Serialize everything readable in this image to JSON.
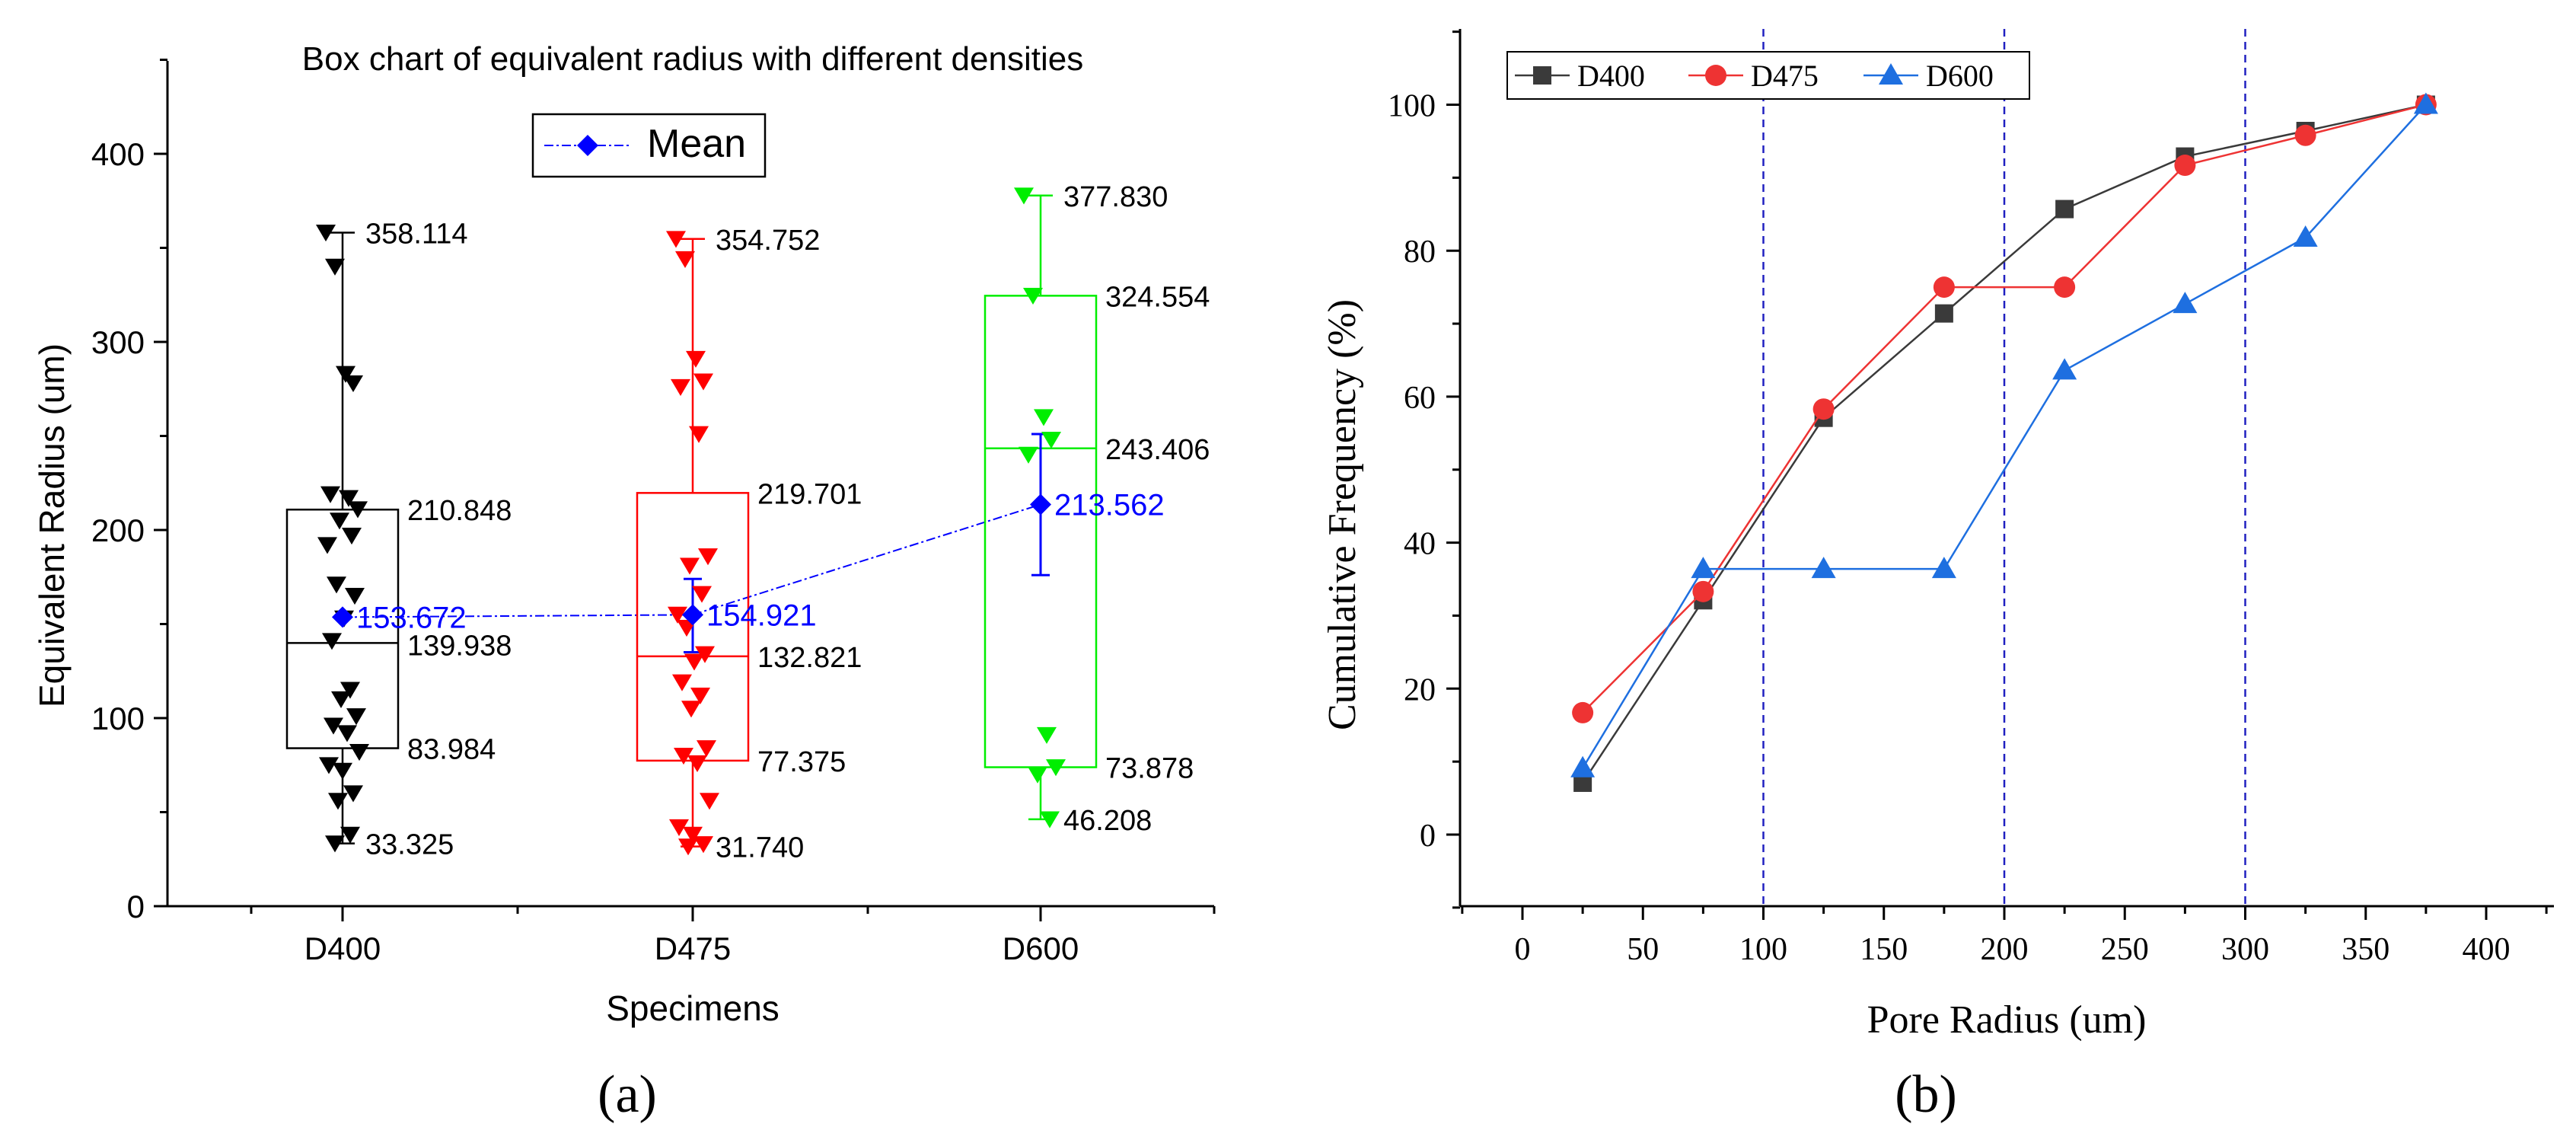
{
  "chart_data": [
    {
      "type": "box",
      "panel_label": "(a)",
      "title": "Box chart of equivalent radius with different densities",
      "xlabel": "Specimens",
      "ylabel": "Equivalent Radius (um)",
      "ylim": [
        0,
        450
      ],
      "yticks": [
        0,
        100,
        200,
        300,
        400
      ],
      "legend": {
        "label": "Mean",
        "placement": "top-center"
      },
      "categories": [
        "D400",
        "D475",
        "D600"
      ],
      "boxes": [
        {
          "name": "D400",
          "color": "#000000",
          "min": 33.325,
          "q1": 83.984,
          "median": 139.938,
          "q3": 210.848,
          "max": 358.114,
          "mean": 153.672,
          "labels": {
            "max": "358.114",
            "q3": "210.848",
            "median": "139.938",
            "q1": "83.984",
            "min": "33.325",
            "mean": "153.672"
          },
          "points": [
            358.114,
            340,
            283,
            278,
            219,
            217,
            211,
            205,
            197,
            192,
            171,
            165,
            153,
            141,
            115,
            110,
            101,
            96,
            92,
            82,
            75,
            72,
            60,
            56,
            38,
            33.325
          ]
        },
        {
          "name": "D475",
          "color": "#ff0000",
          "min": 31.74,
          "q1": 77.375,
          "median": 132.821,
          "q3": 219.701,
          "max": 354.752,
          "mean": 154.921,
          "err_low": 135,
          "err_high": 174,
          "labels": {
            "max": "354.752",
            "q3": "219.701",
            "median": "132.821",
            "q1": "77.375",
            "min": "31.740",
            "mean": "154.921"
          },
          "points": [
            354.752,
            344,
            291,
            279,
            276,
            251,
            186,
            181,
            166,
            155,
            148,
            134,
            130,
            119,
            112,
            105,
            84,
            80,
            76,
            56,
            42,
            38,
            33,
            31.74
          ]
        },
        {
          "name": "D600",
          "color": "#00ee00",
          "min": 46.208,
          "q1": 73.878,
          "median": 243.406,
          "q3": 324.554,
          "max": 377.83,
          "mean": 213.562,
          "err_low": 176,
          "err_high": 251,
          "labels": {
            "max": "377.830",
            "q3": "324.554",
            "median": "243.406",
            "q1": "73.878",
            "min": "46.208",
            "mean": "213.562"
          },
          "points": [
            377.83,
            324.554,
            260,
            248,
            240,
            91,
            73.878,
            70,
            46.208
          ]
        }
      ]
    },
    {
      "type": "line",
      "panel_label": "(b)",
      "xlabel": "Pore Radius (um)",
      "ylabel": "Cumulative Frequency (%)",
      "xlim": [
        -25,
        425
      ],
      "ylim": [
        -10,
        110
      ],
      "xticks": [
        0,
        50,
        100,
        150,
        200,
        250,
        300,
        350,
        400
      ],
      "yticks": [
        0,
        20,
        40,
        60,
        80,
        100
      ],
      "reference_lines_x": [
        100,
        200,
        300
      ],
      "legend": {
        "placement": "top-left",
        "orientation": "horizontal"
      },
      "x": [
        25,
        75,
        125,
        175,
        225,
        275,
        325,
        375
      ],
      "series": [
        {
          "name": "D400",
          "color": "#3a3a3a",
          "marker": "square",
          "values": [
            7.1,
            32.1,
            57.1,
            71.4,
            85.7,
            92.9,
            96.4,
            100
          ]
        },
        {
          "name": "D475",
          "color": "#ee3333",
          "marker": "circle",
          "values": [
            16.7,
            33.3,
            58.3,
            75.0,
            75.0,
            91.7,
            95.8,
            100
          ]
        },
        {
          "name": "D600",
          "color": "#1e6fe0",
          "marker": "triangle",
          "values": [
            9.1,
            36.4,
            36.4,
            36.4,
            63.6,
            72.7,
            81.8,
            100
          ]
        }
      ]
    }
  ]
}
